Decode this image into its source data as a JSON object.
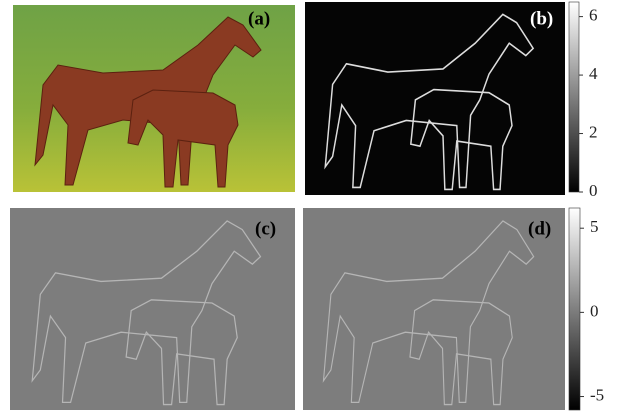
{
  "panels": [
    {
      "label": "(a)"
    },
    {
      "label": "(b)"
    },
    {
      "label": "(c)"
    },
    {
      "label": "(d)"
    }
  ],
  "colorbars": [
    {
      "range": [
        0,
        6.5
      ],
      "ticks": [
        0,
        2,
        4,
        6
      ]
    },
    {
      "range": [
        -5.8,
        6.2
      ],
      "ticks": [
        -5,
        0,
        5
      ]
    }
  ]
}
